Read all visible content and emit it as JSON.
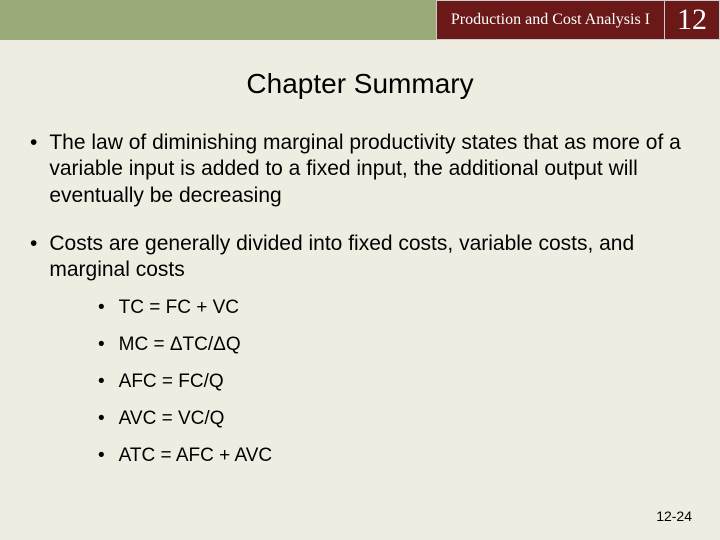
{
  "header": {
    "title": "Production and Cost Analysis I",
    "chapterNumber": "12",
    "colors": {
      "leftBar": "#9aab79",
      "titleBg": "#6a1818",
      "titleText": "#ffffff"
    }
  },
  "slideTitle": "Chapter Summary",
  "bullets": [
    {
      "text": "The law of diminishing marginal productivity states that as more of a variable input is added to a fixed input, the additional output will eventually be decreasing",
      "subs": []
    },
    {
      "text": "Costs are generally divided into fixed costs, variable costs, and marginal costs",
      "subs": [
        "TC = FC + VC",
        "MC = ΔTC/ΔQ",
        "AFC = FC/Q",
        "AVC = VC/Q",
        "ATC = AFC + AVC"
      ]
    }
  ],
  "footer": "12-24",
  "colors": {
    "background": "#efede1",
    "text": "#000000"
  }
}
